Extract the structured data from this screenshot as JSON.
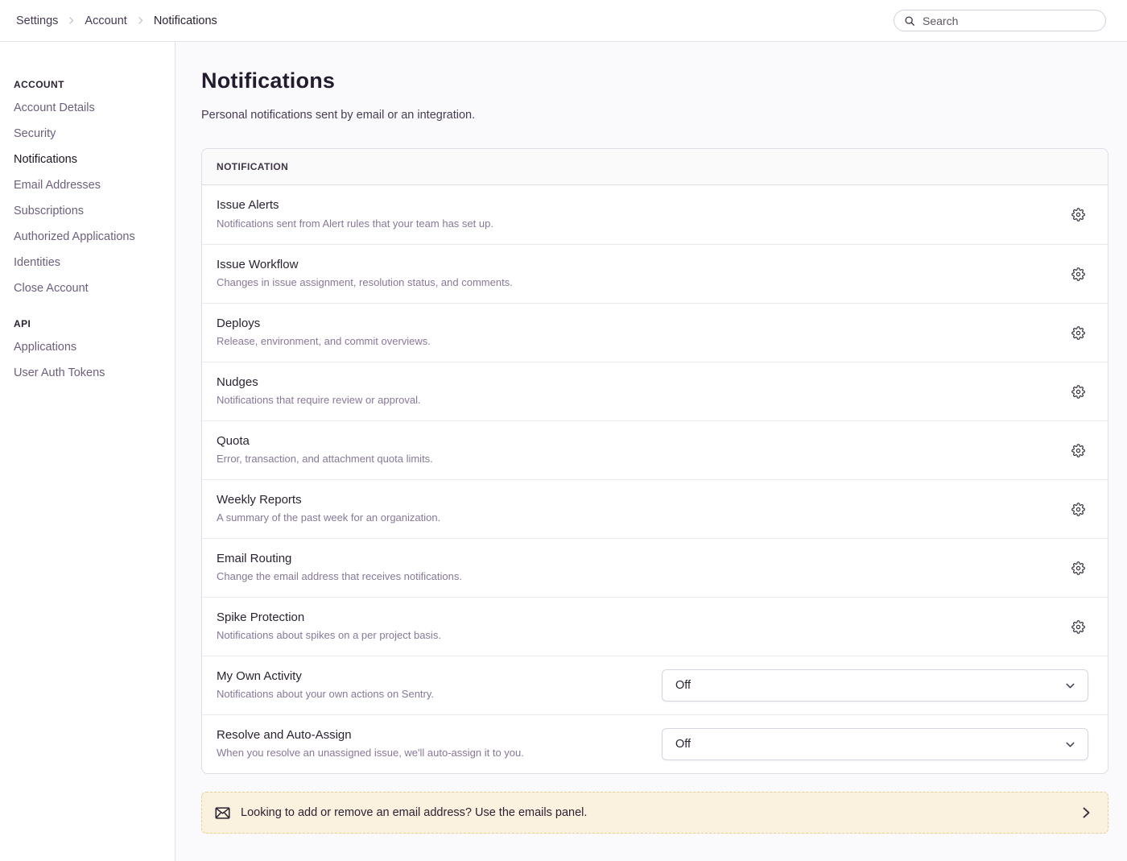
{
  "colors": {
    "background": "#FAF9FB",
    "surface": "#FFFFFF",
    "border": "#E0DCE5",
    "text_primary": "#2B2233",
    "text_secondary": "#877898",
    "sidebar_link": "#6D5F7C",
    "alert_background": "#FAF2DE",
    "alert_border": "#E7CF98"
  },
  "topbar": {
    "breadcrumbs": [
      {
        "label": "Settings"
      },
      {
        "label": "Account"
      },
      {
        "label": "Notifications"
      }
    ],
    "search_placeholder": "Search"
  },
  "sidebar": {
    "sections": [
      {
        "title": "ACCOUNT",
        "items": [
          {
            "label": "Account Details",
            "active": false
          },
          {
            "label": "Security",
            "active": false
          },
          {
            "label": "Notifications",
            "active": true
          },
          {
            "label": "Email Addresses",
            "active": false
          },
          {
            "label": "Subscriptions",
            "active": false
          },
          {
            "label": "Authorized Applications",
            "active": false
          },
          {
            "label": "Identities",
            "active": false
          },
          {
            "label": "Close Account",
            "active": false
          }
        ]
      },
      {
        "title": "API",
        "items": [
          {
            "label": "Applications",
            "active": false
          },
          {
            "label": "User Auth Tokens",
            "active": false
          }
        ]
      }
    ]
  },
  "main": {
    "title": "Notifications",
    "subtitle": "Personal notifications sent by email or an integration.",
    "panel": {
      "header": "NOTIFICATION",
      "rows": [
        {
          "title": "Issue Alerts",
          "description": "Notifications sent from Alert rules that your team has set up.",
          "control": "gear"
        },
        {
          "title": "Issue Workflow",
          "description": "Changes in issue assignment, resolution status, and comments.",
          "control": "gear"
        },
        {
          "title": "Deploys",
          "description": "Release, environment, and commit overviews.",
          "control": "gear"
        },
        {
          "title": "Nudges",
          "description": "Notifications that require review or approval.",
          "control": "gear"
        },
        {
          "title": "Quota",
          "description": "Error, transaction, and attachment quota limits.",
          "control": "gear"
        },
        {
          "title": "Weekly Reports",
          "description": "A summary of the past week for an organization.",
          "control": "gear"
        },
        {
          "title": "Email Routing",
          "description": "Change the email address that receives notifications.",
          "control": "gear"
        },
        {
          "title": "Spike Protection",
          "description": "Notifications about spikes on a per project basis.",
          "control": "gear"
        },
        {
          "title": "My Own Activity",
          "description": "Notifications about your own actions on Sentry.",
          "control": "select",
          "value": "Off"
        },
        {
          "title": "Resolve and Auto-Assign",
          "description": "When you resolve an unassigned issue, we'll auto-assign it to you.",
          "control": "select",
          "value": "Off"
        }
      ]
    },
    "alert": {
      "icon": "envelope-icon",
      "text": "Looking to add or remove an email address? Use the emails panel."
    }
  }
}
